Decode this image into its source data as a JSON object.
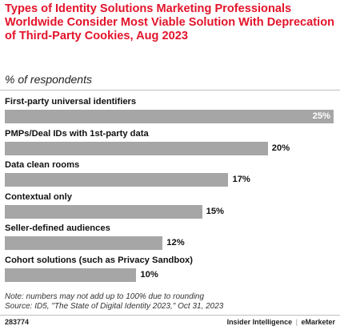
{
  "chart_data": {
    "type": "bar",
    "orientation": "horizontal",
    "title": "Types of Identity Solutions Marketing Professionals Worldwide Consider Most Viable Solution With Deprecation of Third-Party Cookies, Aug 2023",
    "subtitle": "% of respondents",
    "categories": [
      "First-party universal identifiers",
      "PMPs/Deal IDs with 1st-party data",
      "Data clean rooms",
      "Contextual only",
      "Seller-defined audiences",
      "Cohort solutions (such as Privacy Sandbox)"
    ],
    "values": [
      25,
      20,
      17,
      15,
      12,
      10
    ],
    "value_labels": [
      "25%",
      "20%",
      "17%",
      "15%",
      "12%",
      "10%"
    ],
    "unit": "%",
    "xlim": [
      0,
      25
    ],
    "grid": false,
    "bar_color": "#a6a6a6",
    "title_color": "#e3142b"
  },
  "footer": {
    "note": "Note: numbers may not add up to 100% due to rounding",
    "source": "Source: ID5, \"The State of Digital Identity 2023,\" Oct 31, 2023",
    "chart_id": "283774",
    "brand_left": "Insider Intelligence",
    "brand_separator": "|",
    "brand_right": "eMarketer"
  }
}
